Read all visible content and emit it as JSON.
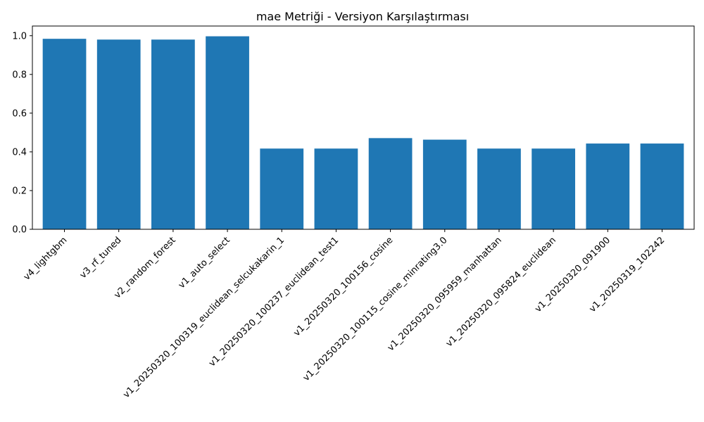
{
  "chart_data": {
    "type": "bar",
    "title": "mae Metriği - Versiyon Karşılaştırması",
    "xlabel": "",
    "ylabel": "",
    "categories": [
      "v4_lightgbm",
      "v3_rf_tuned",
      "v2_random_forest",
      "v1_auto_select",
      "v1_20250320_100319_euclidean_selcukakarin_1",
      "v1_20250320_100237_euclidean_test1",
      "v1_20250320_100156_cosine",
      "v1_20250320_100115_cosine_minrating3.0",
      "v1_20250320_095959_manhattan",
      "v1_20250320_095824_euclidean",
      "v1_20250320_091900",
      "v1_20250319_102242"
    ],
    "values": [
      0.984,
      0.98,
      0.98,
      0.997,
      0.417,
      0.417,
      0.471,
      0.463,
      0.417,
      0.417,
      0.443,
      0.443
    ],
    "ylim": [
      0,
      1.05
    ],
    "yticks": [
      "0.0",
      "0.2",
      "0.4",
      "0.6",
      "0.8",
      "1.0"
    ],
    "bar_color": "#1f77b4",
    "grid": false,
    "legend": "none"
  }
}
